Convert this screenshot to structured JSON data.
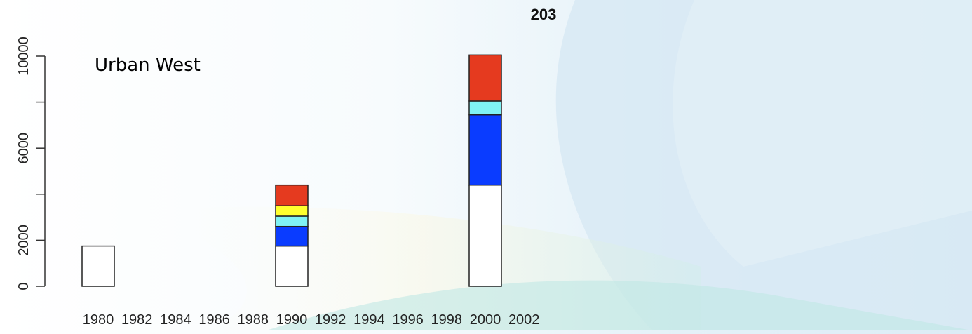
{
  "chart_data": {
    "type": "bar",
    "stacked": true,
    "title": "203",
    "annotation": "Urban West",
    "xlabel": "",
    "ylabel": "",
    "x_ticks": [
      "1980",
      "1982",
      "1984",
      "1986",
      "1988",
      "1990",
      "1992",
      "1994",
      "1996",
      "1998",
      "2000",
      "2002"
    ],
    "y_ticks": [
      "0",
      "2000",
      "6000",
      "10000"
    ],
    "ylim": [
      0,
      10000
    ],
    "categories": [
      "1980",
      "1990",
      "2000"
    ],
    "series": [
      {
        "color": "#ffffff",
        "values": [
          1750,
          1750,
          4400
        ]
      },
      {
        "color": "#0a3cff",
        "values": [
          0,
          850,
          3050
        ]
      },
      {
        "color": "#7ff2f5",
        "values": [
          0,
          450,
          600
        ]
      },
      {
        "color": "#ffff2e",
        "values": [
          0,
          450,
          0
        ]
      },
      {
        "color": "#e53a1f",
        "values": [
          0,
          900,
          2000
        ]
      }
    ],
    "grid": false,
    "legend": "none"
  }
}
